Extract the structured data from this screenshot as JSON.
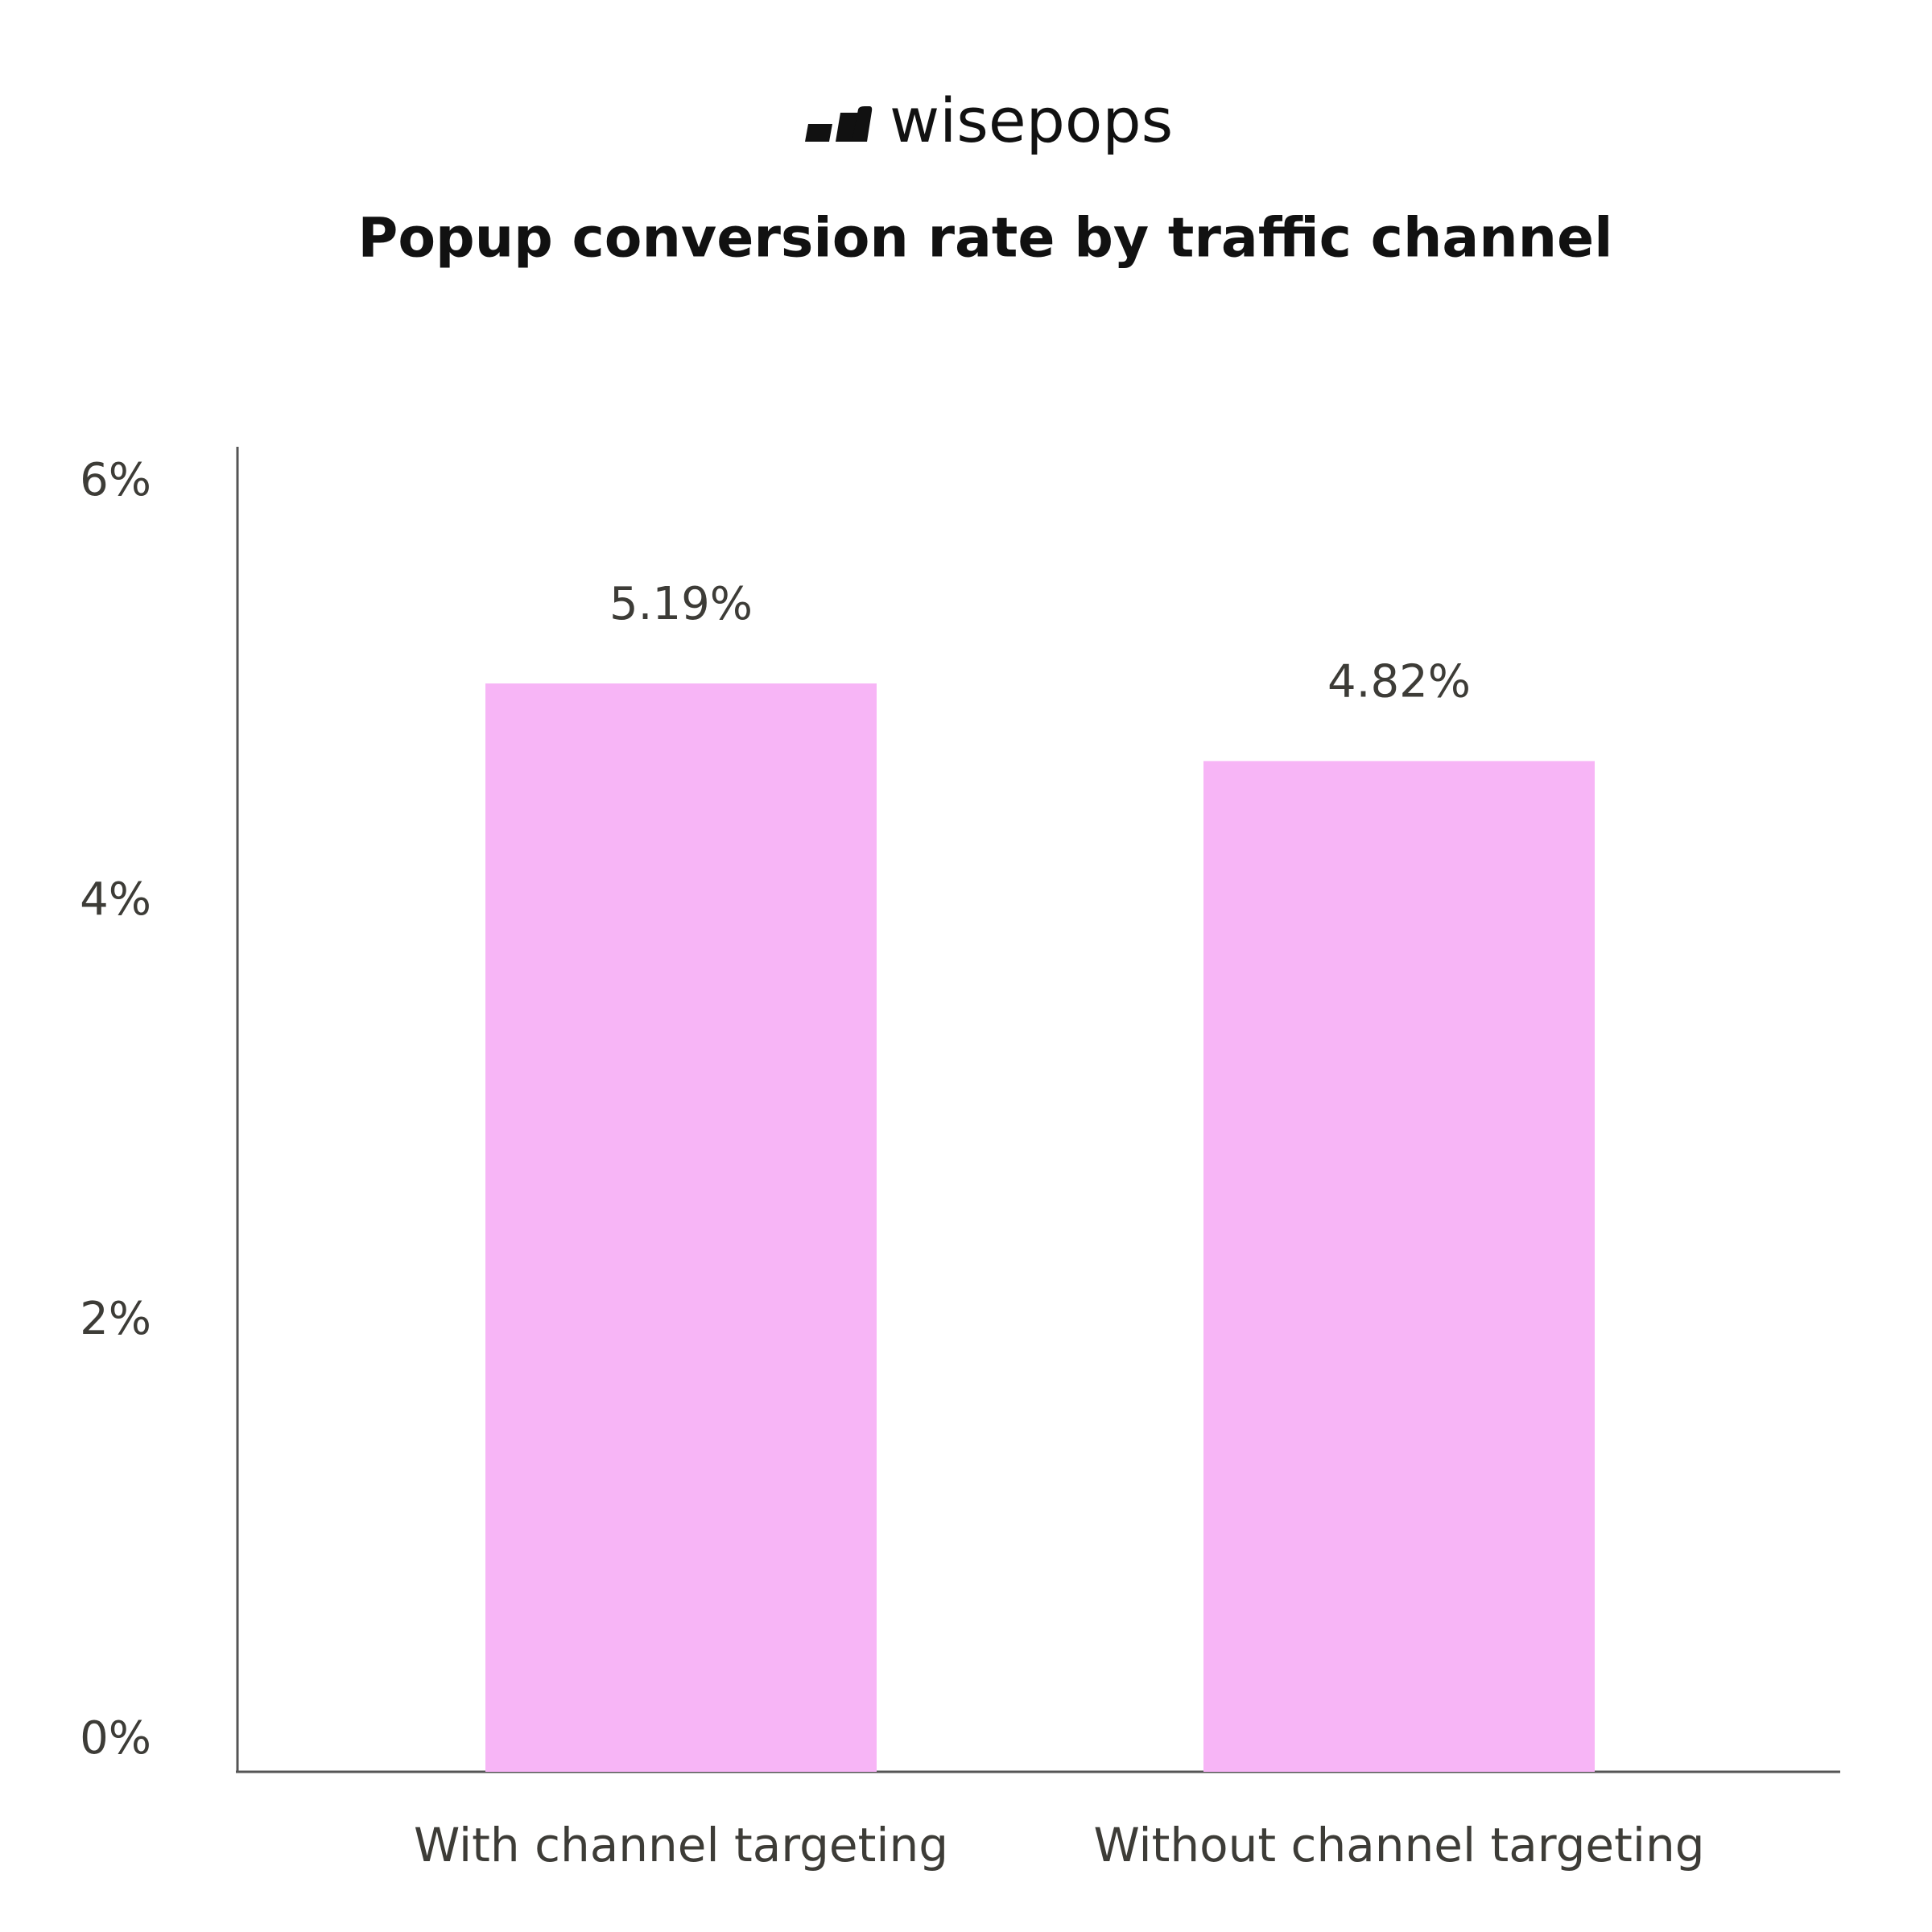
{
  "chart_data": {
    "type": "bar",
    "logo": "wisepops",
    "title": "Popup conversion rate by traffic channel",
    "categories": [
      "With channel targeting",
      "Without channel targeting"
    ],
    "values": [
      5.19,
      4.82
    ],
    "value_labels": [
      "5.19%",
      "4.82%"
    ],
    "color": "#f7b5f6",
    "ylim": [
      0,
      6
    ],
    "yticks": [
      {
        "value": 0,
        "label": "0%"
      },
      {
        "value": 2,
        "label": "2%"
      },
      {
        "value": 4,
        "label": "4%"
      },
      {
        "value": 6,
        "label": "6%"
      }
    ],
    "grid": false
  }
}
